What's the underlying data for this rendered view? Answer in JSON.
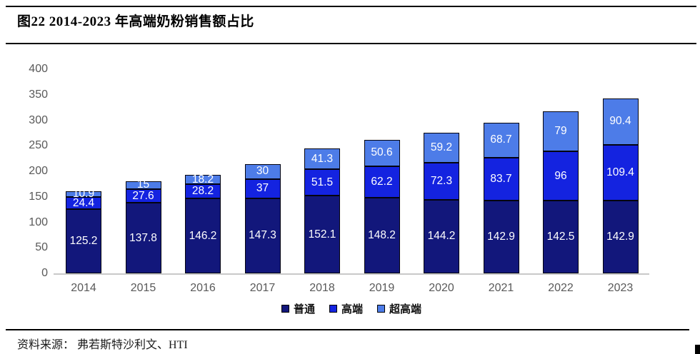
{
  "header": {
    "title": "图22 2014-2023 年高端奶粉销售额占比"
  },
  "footer": {
    "source_label": "资料来源：",
    "source_text": "弗若斯特沙利文、HTI"
  },
  "chart_data": {
    "type": "bar",
    "stacked": true,
    "title": "图22 2014-2023 年高端奶粉销售额占比",
    "categories": [
      "2014",
      "2015",
      "2016",
      "2017",
      "2018",
      "2019",
      "2020",
      "2021",
      "2022",
      "2023"
    ],
    "series": [
      {
        "name": "普通",
        "color": "#12177b",
        "values": [
          125.2,
          137.8,
          146.2,
          147.3,
          152.1,
          148.2,
          144.2,
          142.9,
          142.5,
          142.9
        ]
      },
      {
        "name": "高端",
        "color": "#1423e0",
        "values": [
          24.4,
          27.6,
          28.2,
          37,
          51.5,
          62.2,
          72.3,
          83.7,
          96,
          109.4
        ]
      },
      {
        "name": "超高端",
        "color": "#4d7ce8",
        "values": [
          10.9,
          15,
          18.2,
          30,
          41.3,
          50.6,
          59.2,
          68.7,
          79,
          90.4
        ]
      }
    ],
    "xlabel": "",
    "ylabel": "",
    "ylim": [
      0,
      400
    ],
    "yticks": [
      0,
      50,
      100,
      150,
      200,
      250,
      300,
      350,
      400
    ],
    "grid": false,
    "legend_position": "bottom",
    "value_labels": "inside-white",
    "colors": {
      "axis_line": "#c9c9c9",
      "tick_text": "#595959",
      "bar_border": "#04040f",
      "label_text": "#ffffff"
    }
  }
}
